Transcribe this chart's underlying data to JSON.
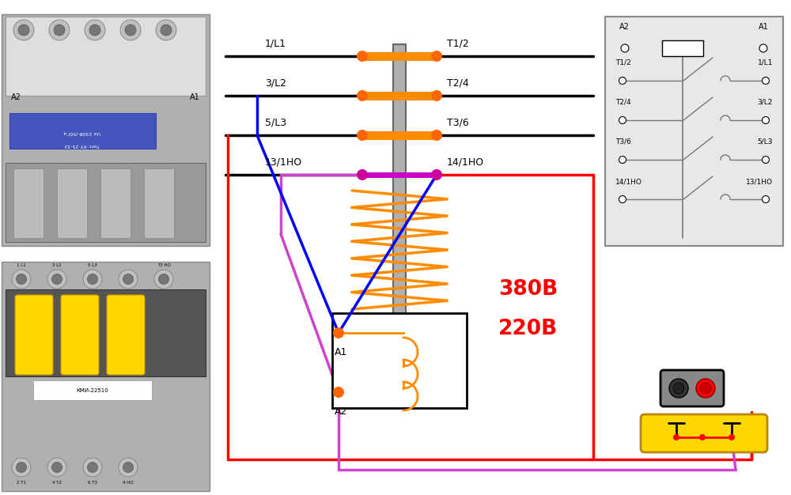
{
  "bg_color": "#ffffff",
  "orange": "#FF8C00",
  "orange_light": "#FFA040",
  "black": "#000000",
  "red": "#FF0000",
  "blue": "#0000FF",
  "magenta": "#CC00CC",
  "magenta_line": "#CC44CC",
  "gray_bar": "#A0A0A0",
  "dot_color": "#FF6600",
  "dot_magenta": "#CC0099",
  "text_380": "380B",
  "text_220": "220B",
  "labels_left": [
    "1/L1",
    "3/L2",
    "5/L3",
    "13/1HO"
  ],
  "labels_right": [
    "T1/2",
    "T2/4",
    "T3/6",
    "14/1HO"
  ],
  "sch_bg": "#E8E8E8",
  "sch_edge": "#888888",
  "sch_line": "#777777",
  "yellow": "#FFD700",
  "yellow_edge": "#B8860B",
  "btn_gray": "#888888",
  "coil_color": "#FF8C00"
}
